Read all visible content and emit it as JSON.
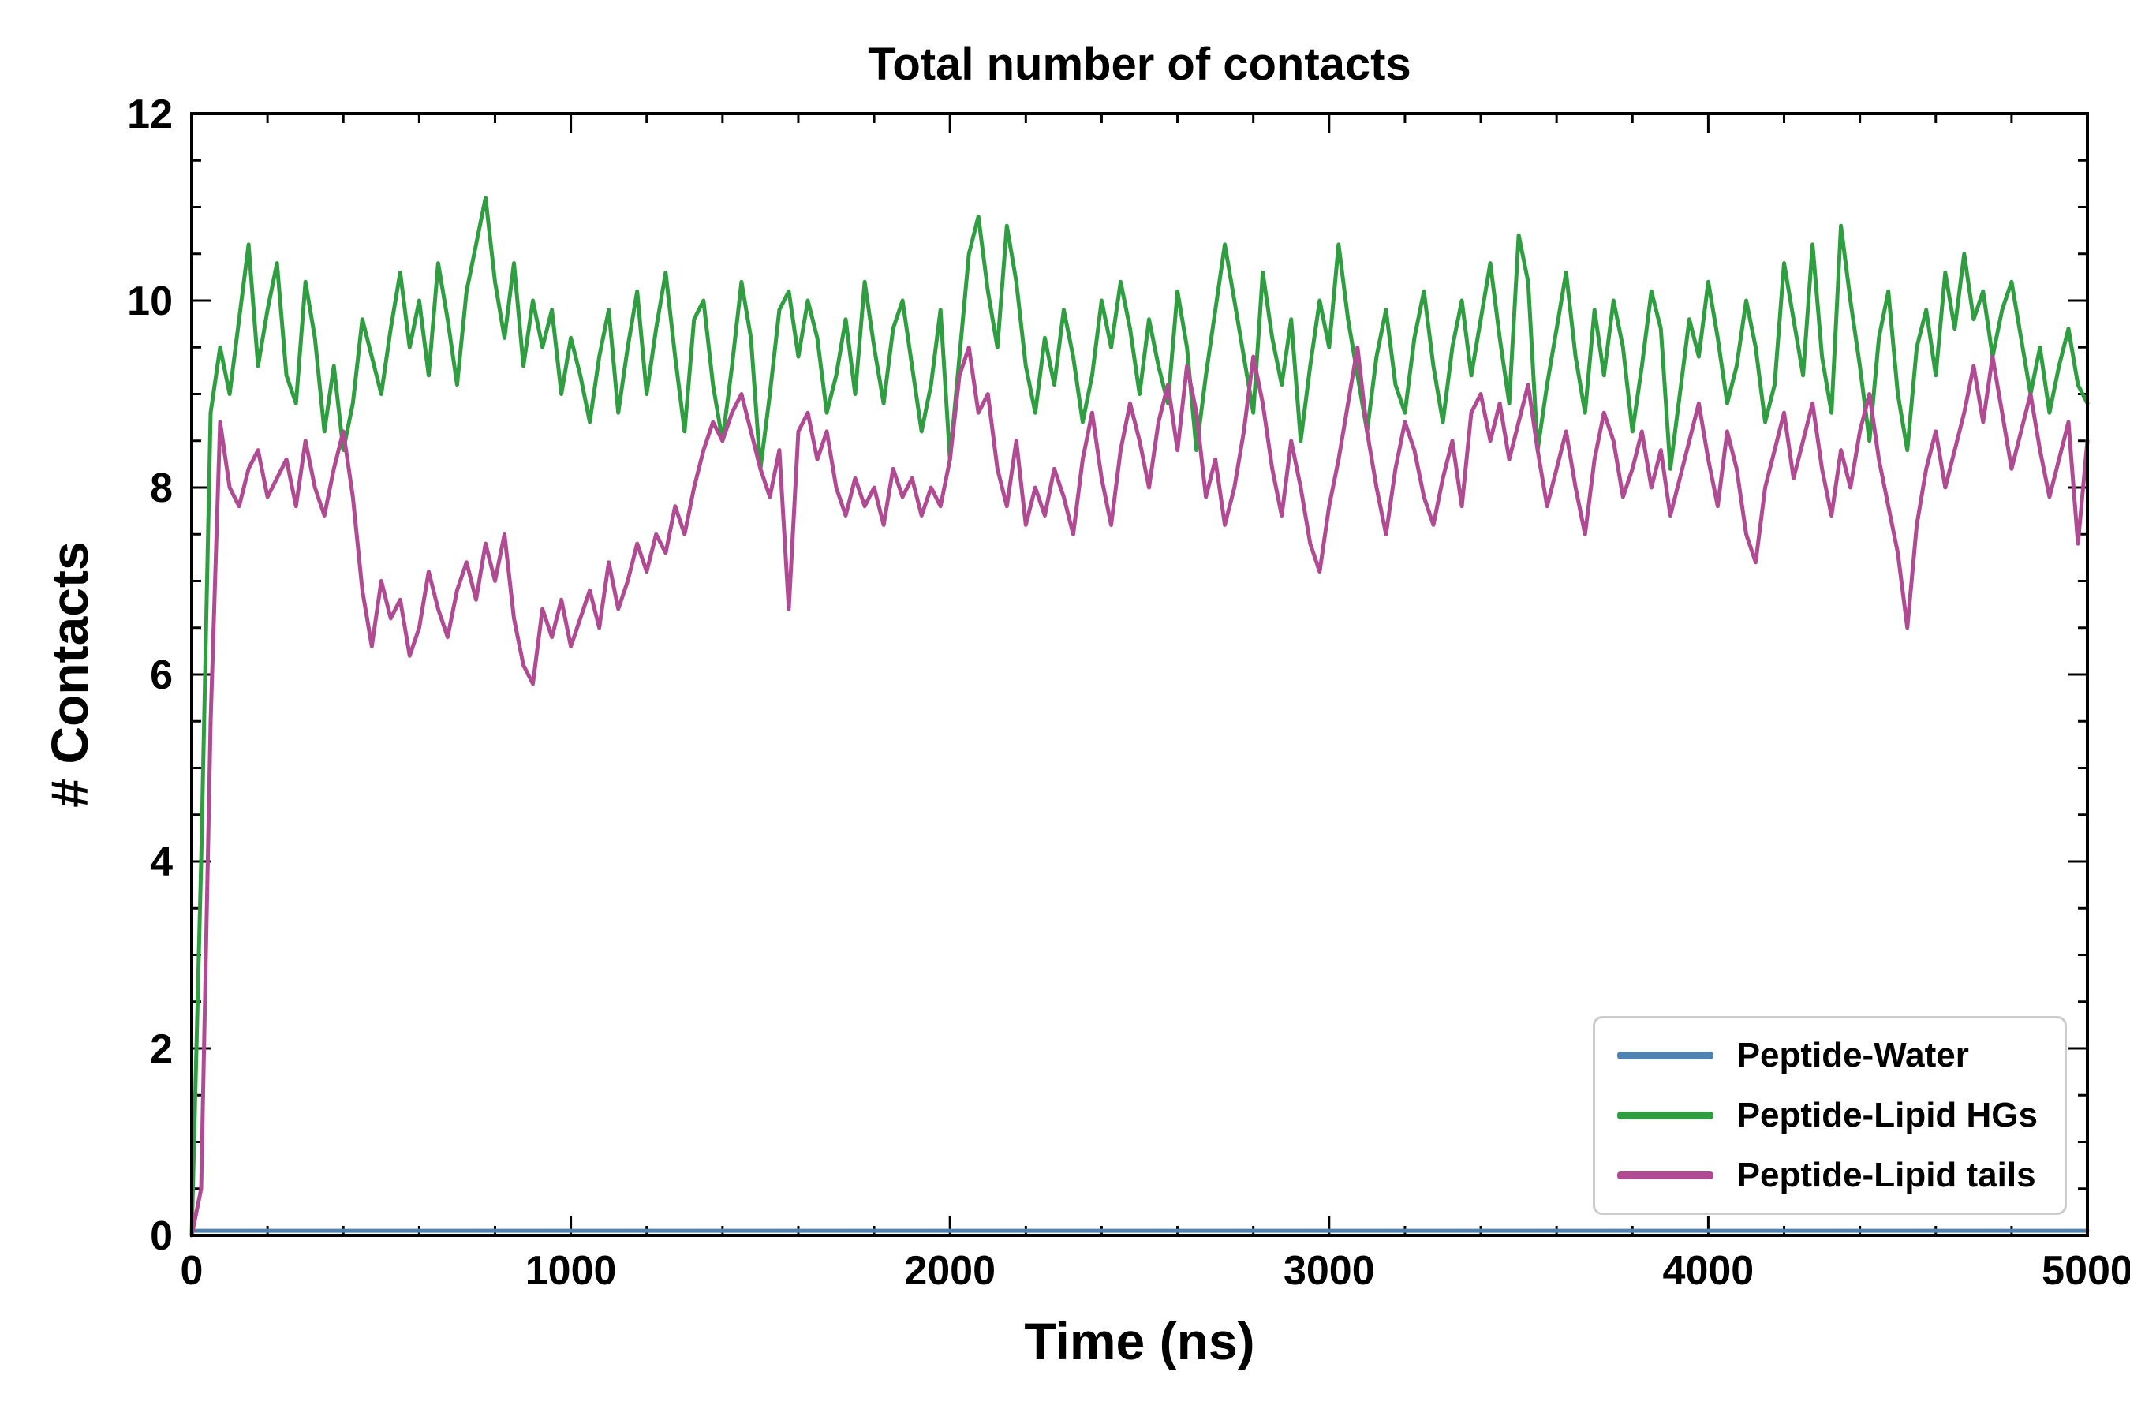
{
  "chart_data": {
    "type": "line",
    "title": "Total number of contacts",
    "xlabel": "Time (ns)",
    "ylabel": "# Contacts",
    "xlim": [
      0,
      5000
    ],
    "ylim": [
      0,
      12
    ],
    "x_ticks": [
      0,
      1000,
      2000,
      3000,
      4000,
      5000
    ],
    "y_ticks": [
      0,
      2,
      4,
      6,
      8,
      10,
      12
    ],
    "x_minor_step": 200,
    "y_minor_step": 0.5,
    "grid": false,
    "legend_position": "lower right",
    "axis_color": "#000000",
    "series": [
      {
        "name": "Peptide-Water",
        "color": "#4f83b1",
        "x_start": 0,
        "x_step": 5000,
        "values": [
          0.05,
          0.05
        ]
      },
      {
        "name": "Peptide-Lipid HGs",
        "color": "#2f9e41",
        "x_start": 0,
        "x_step": 25,
        "values": [
          0.0,
          4.0,
          8.8,
          9.5,
          9.0,
          9.8,
          10.6,
          9.3,
          9.9,
          10.4,
          9.2,
          8.9,
          10.2,
          9.6,
          8.6,
          9.3,
          8.4,
          8.9,
          9.8,
          9.4,
          9.0,
          9.7,
          10.3,
          9.5,
          10.0,
          9.2,
          10.4,
          9.8,
          9.1,
          10.1,
          10.6,
          11.1,
          10.2,
          9.6,
          10.4,
          9.3,
          10.0,
          9.5,
          9.9,
          9.0,
          9.6,
          9.2,
          8.7,
          9.4,
          9.9,
          8.8,
          9.5,
          10.1,
          9.0,
          9.7,
          10.3,
          9.4,
          8.6,
          9.8,
          10.0,
          9.1,
          8.5,
          9.3,
          10.2,
          9.6,
          8.2,
          9.0,
          9.9,
          10.1,
          9.4,
          10.0,
          9.6,
          8.8,
          9.2,
          9.8,
          9.0,
          10.2,
          9.5,
          8.9,
          9.7,
          10.0,
          9.3,
          8.6,
          9.1,
          9.9,
          8.3,
          9.4,
          10.5,
          10.9,
          10.1,
          9.5,
          10.8,
          10.2,
          9.3,
          8.8,
          9.6,
          9.1,
          9.9,
          9.4,
          8.7,
          9.2,
          10.0,
          9.5,
          10.2,
          9.7,
          9.0,
          9.8,
          9.3,
          8.9,
          10.1,
          9.5,
          8.4,
          9.2,
          9.9,
          10.6,
          10.0,
          9.4,
          8.8,
          10.3,
          9.6,
          9.1,
          9.8,
          8.5,
          9.3,
          10.0,
          9.5,
          10.6,
          9.8,
          9.2,
          8.6,
          9.4,
          9.9,
          9.1,
          8.8,
          9.6,
          10.1,
          9.3,
          8.7,
          9.5,
          10.0,
          9.2,
          9.8,
          10.4,
          9.6,
          8.9,
          10.7,
          10.2,
          8.4,
          9.1,
          9.7,
          10.3,
          9.4,
          8.8,
          9.9,
          9.2,
          10.0,
          9.5,
          8.6,
          9.3,
          10.1,
          9.7,
          8.2,
          9.0,
          9.8,
          9.4,
          10.2,
          9.6,
          8.9,
          9.3,
          10.0,
          9.5,
          8.7,
          9.1,
          10.4,
          9.8,
          9.2,
          10.6,
          9.4,
          8.8,
          10.8,
          10.0,
          9.3,
          8.5,
          9.6,
          10.1,
          9.0,
          8.4,
          9.5,
          9.9,
          9.2,
          10.3,
          9.7,
          10.5,
          9.8,
          10.1,
          9.4,
          9.9,
          10.2,
          9.6,
          9.0,
          9.5,
          8.8,
          9.3,
          9.7,
          9.1,
          8.9
        ]
      },
      {
        "name": "Peptide-Lipid tails",
        "color": "#b04a92",
        "x_start": 0,
        "x_step": 25,
        "values": [
          0.0,
          0.5,
          5.5,
          8.7,
          8.0,
          7.8,
          8.2,
          8.4,
          7.9,
          8.1,
          8.3,
          7.8,
          8.5,
          8.0,
          7.7,
          8.2,
          8.6,
          7.9,
          6.9,
          6.3,
          7.0,
          6.6,
          6.8,
          6.2,
          6.5,
          7.1,
          6.7,
          6.4,
          6.9,
          7.2,
          6.8,
          7.4,
          7.0,
          7.5,
          6.6,
          6.1,
          5.9,
          6.7,
          6.4,
          6.8,
          6.3,
          6.6,
          6.9,
          6.5,
          7.2,
          6.7,
          7.0,
          7.4,
          7.1,
          7.5,
          7.3,
          7.8,
          7.5,
          8.0,
          8.4,
          8.7,
          8.5,
          8.8,
          9.0,
          8.6,
          8.2,
          7.9,
          8.4,
          6.7,
          8.6,
          8.8,
          8.3,
          8.6,
          8.0,
          7.7,
          8.1,
          7.8,
          8.0,
          7.6,
          8.2,
          7.9,
          8.1,
          7.7,
          8.0,
          7.8,
          8.3,
          9.2,
          9.5,
          8.8,
          9.0,
          8.2,
          7.8,
          8.5,
          7.6,
          8.0,
          7.7,
          8.2,
          7.9,
          7.5,
          8.3,
          8.8,
          8.1,
          7.6,
          8.4,
          8.9,
          8.5,
          8.0,
          8.7,
          9.1,
          8.4,
          9.3,
          8.8,
          7.9,
          8.3,
          7.6,
          8.0,
          8.6,
          9.4,
          8.9,
          8.2,
          7.7,
          8.5,
          8.0,
          7.4,
          7.1,
          7.8,
          8.3,
          8.9,
          9.5,
          8.6,
          8.0,
          7.5,
          8.2,
          8.7,
          8.4,
          7.9,
          7.6,
          8.1,
          8.5,
          7.8,
          8.8,
          9.0,
          8.5,
          8.9,
          8.3,
          8.7,
          9.1,
          8.4,
          7.8,
          8.2,
          8.6,
          8.0,
          7.5,
          8.3,
          8.8,
          8.5,
          7.9,
          8.2,
          8.6,
          8.0,
          8.4,
          7.7,
          8.1,
          8.5,
          8.9,
          8.3,
          7.8,
          8.6,
          8.2,
          7.5,
          7.2,
          8.0,
          8.4,
          8.8,
          8.1,
          8.5,
          8.9,
          8.2,
          7.7,
          8.4,
          8.0,
          8.6,
          9.0,
          8.3,
          7.8,
          7.3,
          6.5,
          7.6,
          8.2,
          8.6,
          8.0,
          8.4,
          8.8,
          9.3,
          8.7,
          9.4,
          8.8,
          8.2,
          8.6,
          9.0,
          8.4,
          7.9,
          8.3,
          8.7,
          7.4,
          8.5
        ]
      }
    ]
  }
}
